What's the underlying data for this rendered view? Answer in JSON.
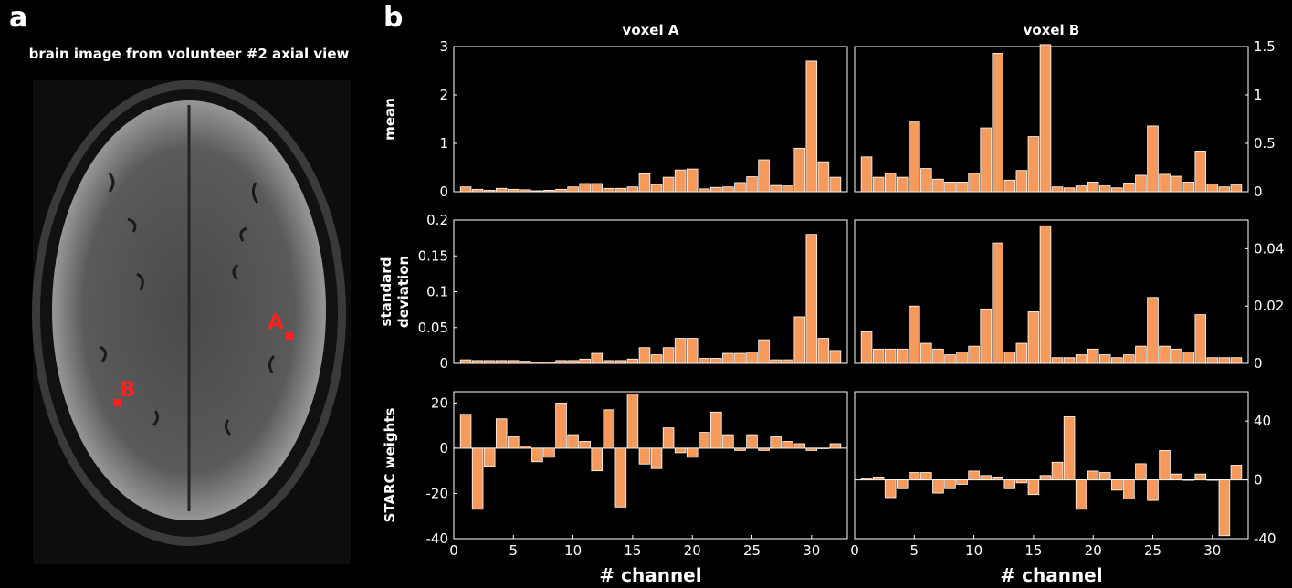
{
  "panel_a": {
    "letter": "a",
    "title": "brain image from volunteer #2 axial view",
    "voxel_a_label": "A",
    "voxel_b_label": "B"
  },
  "panel_b": {
    "letter": "b"
  },
  "colors": {
    "bar": "#f59a5b",
    "bar_edge": "#ffffff",
    "axis": "#ffffff",
    "marker": "#ff2020",
    "background": "#000000"
  },
  "chart_data": [
    {
      "type": "bar",
      "id": "mean-voxel-a",
      "title": "voxel A",
      "ylabel": "mean",
      "xlabel": "",
      "x": [
        1,
        2,
        3,
        4,
        5,
        6,
        7,
        8,
        9,
        10,
        11,
        12,
        13,
        14,
        15,
        16,
        17,
        18,
        19,
        20,
        21,
        22,
        23,
        24,
        25,
        26,
        27,
        28,
        29,
        30,
        31,
        32
      ],
      "values": [
        0.1,
        0.05,
        0.03,
        0.07,
        0.05,
        0.04,
        0.02,
        0.03,
        0.05,
        0.1,
        0.17,
        0.17,
        0.07,
        0.07,
        0.1,
        0.37,
        0.15,
        0.3,
        0.45,
        0.47,
        0.06,
        0.09,
        0.1,
        0.19,
        0.31,
        0.66,
        0.13,
        0.12,
        0.9,
        2.7,
        0.62,
        0.3
      ],
      "ylim": [
        0,
        3
      ],
      "yticks": [
        0,
        1,
        2,
        3
      ],
      "xlim": [
        0,
        33
      ],
      "ytick_side": "left"
    },
    {
      "type": "bar",
      "id": "mean-voxel-b",
      "title": "voxel B",
      "ylabel": "",
      "xlabel": "",
      "x": [
        1,
        2,
        3,
        4,
        5,
        6,
        7,
        8,
        9,
        10,
        11,
        12,
        13,
        14,
        15,
        16,
        17,
        18,
        19,
        20,
        21,
        22,
        23,
        24,
        25,
        26,
        27,
        28,
        29,
        30,
        31,
        32
      ],
      "values": [
        0.36,
        0.15,
        0.19,
        0.15,
        0.72,
        0.24,
        0.13,
        0.1,
        0.1,
        0.19,
        0.66,
        1.43,
        0.12,
        0.22,
        0.57,
        1.52,
        0.05,
        0.04,
        0.06,
        0.1,
        0.06,
        0.04,
        0.09,
        0.17,
        0.68,
        0.18,
        0.16,
        0.1,
        0.42,
        0.08,
        0.05,
        0.07
      ],
      "ylim": [
        0,
        1.5
      ],
      "yticks": [
        "0",
        "0.5",
        "1",
        "1.5"
      ],
      "xlim": [
        0,
        33
      ],
      "ytick_side": "right"
    },
    {
      "type": "bar",
      "id": "std-voxel-a",
      "title": "",
      "ylabel": "standard deviation",
      "xlabel": "",
      "x": [
        1,
        2,
        3,
        4,
        5,
        6,
        7,
        8,
        9,
        10,
        11,
        12,
        13,
        14,
        15,
        16,
        17,
        18,
        19,
        20,
        21,
        22,
        23,
        24,
        25,
        26,
        27,
        28,
        29,
        30,
        31,
        32
      ],
      "values": [
        0.005,
        0.004,
        0.004,
        0.004,
        0.004,
        0.003,
        0.002,
        0.002,
        0.004,
        0.004,
        0.006,
        0.014,
        0.004,
        0.004,
        0.006,
        0.022,
        0.012,
        0.022,
        0.035,
        0.035,
        0.007,
        0.007,
        0.014,
        0.014,
        0.016,
        0.033,
        0.005,
        0.005,
        0.065,
        0.18,
        0.035,
        0.018
      ],
      "ylim": [
        0,
        0.2
      ],
      "yticks": [
        "0",
        "0.05",
        "0.1",
        "0.15",
        "0.2"
      ],
      "xlim": [
        0,
        33
      ],
      "ytick_side": "left"
    },
    {
      "type": "bar",
      "id": "std-voxel-b",
      "title": "",
      "ylabel": "",
      "xlabel": "",
      "x": [
        1,
        2,
        3,
        4,
        5,
        6,
        7,
        8,
        9,
        10,
        11,
        12,
        13,
        14,
        15,
        16,
        17,
        18,
        19,
        20,
        21,
        22,
        23,
        24,
        25,
        26,
        27,
        28,
        29,
        30,
        31,
        32
      ],
      "values": [
        0.011,
        0.005,
        0.005,
        0.005,
        0.02,
        0.007,
        0.005,
        0.003,
        0.004,
        0.006,
        0.019,
        0.042,
        0.004,
        0.007,
        0.018,
        0.048,
        0.002,
        0.002,
        0.003,
        0.005,
        0.003,
        0.002,
        0.003,
        0.006,
        0.023,
        0.006,
        0.005,
        0.004,
        0.017,
        0.002,
        0.002,
        0.002
      ],
      "ylim": [
        0,
        0.05
      ],
      "yticks": [
        "0",
        "0.02",
        "0.04"
      ],
      "ytick_values": [
        0,
        0.02,
        0.04
      ],
      "xlim": [
        0,
        33
      ],
      "ytick_side": "right"
    },
    {
      "type": "bar",
      "id": "starc-voxel-a",
      "title": "",
      "ylabel": "STARC weights",
      "xlabel": "# channel",
      "x": [
        1,
        2,
        3,
        4,
        5,
        6,
        7,
        8,
        9,
        10,
        11,
        12,
        13,
        14,
        15,
        16,
        17,
        18,
        19,
        20,
        21,
        22,
        23,
        24,
        25,
        26,
        27,
        28,
        29,
        30,
        31,
        32
      ],
      "values": [
        15,
        -27,
        -8,
        13,
        5,
        1,
        -6,
        -4,
        20,
        6,
        3,
        -10,
        17,
        -26,
        24,
        -7,
        -9,
        9,
        -2,
        -4,
        7,
        16,
        6,
        -1,
        6,
        -1,
        5,
        3,
        2,
        -1,
        0,
        2
      ],
      "ylim": [
        -40,
        25
      ],
      "yticks": [
        "-40",
        "-20",
        "0",
        "20"
      ],
      "ytick_values": [
        -40,
        -20,
        0,
        20
      ],
      "xlim": [
        0,
        33
      ],
      "ytick_side": "left",
      "xticks": [
        "0",
        "5",
        "10",
        "15",
        "20",
        "25",
        "30"
      ]
    },
    {
      "type": "bar",
      "id": "starc-voxel-b",
      "title": "",
      "ylabel": "",
      "xlabel": "# channel",
      "x": [
        1,
        2,
        3,
        4,
        5,
        6,
        7,
        8,
        9,
        10,
        11,
        12,
        13,
        14,
        15,
        16,
        17,
        18,
        19,
        20,
        21,
        22,
        23,
        24,
        25,
        26,
        27,
        28,
        29,
        30,
        31,
        32
      ],
      "values": [
        1,
        2,
        -12,
        -6,
        5,
        5,
        -9,
        -6,
        -3,
        6,
        3,
        2,
        -6,
        -2,
        -10,
        3,
        12,
        43,
        -20,
        6,
        5,
        -7,
        -13,
        11,
        -14,
        20,
        4,
        0,
        4,
        0,
        -38,
        10
      ],
      "ylim": [
        -40,
        60
      ],
      "yticks": [
        "-40",
        "0",
        "40"
      ],
      "ytick_values": [
        -40,
        0,
        40
      ],
      "xlim": [
        0,
        33
      ],
      "ytick_side": "right",
      "xticks": [
        "0",
        "5",
        "10",
        "15",
        "20",
        "25",
        "30"
      ]
    }
  ]
}
